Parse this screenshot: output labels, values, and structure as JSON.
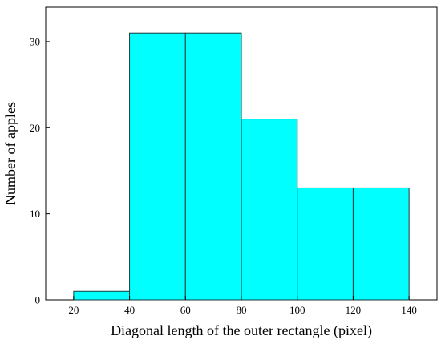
{
  "chart_data": {
    "type": "bar",
    "title": "",
    "xlabel": "Diagonal length of the outer rectangle (pixel)",
    "ylabel": "Number of apples",
    "bins": [
      {
        "start": 20,
        "end": 40,
        "count": 1
      },
      {
        "start": 40,
        "end": 60,
        "count": 31
      },
      {
        "start": 60,
        "end": 80,
        "count": 31
      },
      {
        "start": 80,
        "end": 100,
        "count": 21
      },
      {
        "start": 100,
        "end": 120,
        "count": 13
      },
      {
        "start": 120,
        "end": 140,
        "count": 13
      }
    ],
    "xticks": [
      "20",
      "40",
      "60",
      "80",
      "100",
      "120",
      "140"
    ],
    "yticks": [
      "0",
      "10",
      "20",
      "30"
    ],
    "xlim": [
      10,
      150
    ],
    "ylim": [
      0,
      34
    ],
    "grid": false,
    "bar_color": "#00ffff",
    "edge_color": "#1a3a3a"
  }
}
